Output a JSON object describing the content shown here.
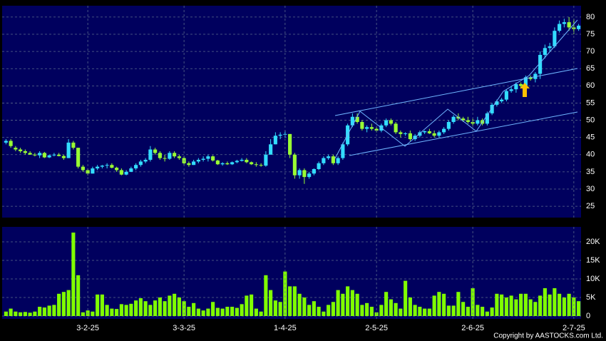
{
  "chart_data": [
    {
      "type": "candlestick",
      "up_color": "#33ddff",
      "down_color": "#99ff33",
      "ylim": [
        21.7,
        83.3
      ],
      "yticks": [
        25,
        30,
        35,
        40,
        45,
        50,
        55,
        60,
        65,
        70,
        75,
        80
      ],
      "grid": true,
      "open": [
        43.5,
        44,
        42,
        41.5,
        41,
        40.5,
        40,
        39.8,
        40.5,
        39.2,
        39.8,
        40,
        39.6,
        39,
        43.5,
        42,
        36.5,
        35.5,
        34.5,
        36,
        36.5,
        36.8,
        37,
        36.2,
        35.5,
        34.2,
        35,
        36,
        37,
        38,
        38.5,
        41.5,
        40.5,
        39,
        38.8,
        40.5,
        39.5,
        39,
        37.5,
        37,
        38,
        38.5,
        38.8,
        39.5,
        38.3,
        37.2,
        37.5,
        37.2,
        37.8,
        38.2,
        38.5,
        37.8,
        37.2,
        37,
        36.8,
        40,
        43,
        45.5,
        45.8,
        46,
        40,
        34,
        35.5,
        33.5,
        34.5,
        35.8,
        37.5,
        39,
        39.5,
        37.5,
        39,
        43,
        48.5,
        51,
        49.5,
        47.5,
        48,
        47.5,
        47,
        48.5,
        50,
        49,
        46.5,
        46,
        46.2,
        44.5,
        45.5,
        46.5,
        46.8,
        46.2,
        45.5,
        46.5,
        47.5,
        49.5,
        51,
        50.5,
        50,
        49.5,
        49,
        50,
        49,
        52,
        54.5,
        55.5,
        56,
        58.5,
        59,
        60.5,
        60,
        62.5,
        62,
        63.5,
        69,
        71,
        71.5,
        76,
        78,
        78.5,
        77,
        76.5
      ],
      "high": [
        44.5,
        44.5,
        42.5,
        42,
        41.5,
        41,
        40.5,
        41,
        40.8,
        40,
        40.5,
        40.5,
        40,
        44.5,
        44,
        42,
        37,
        36,
        36.5,
        37,
        37,
        37.5,
        37.5,
        36.5,
        36,
        35.5,
        36.5,
        37.5,
        38.5,
        39,
        42.5,
        42,
        41,
        40,
        41,
        41,
        40,
        39.5,
        38,
        38.5,
        39,
        39.5,
        40,
        39.8,
        38.5,
        37.8,
        38,
        38,
        38.5,
        39,
        39,
        38,
        37.8,
        37.5,
        41,
        44.5,
        46.5,
        46.5,
        47,
        46,
        40.5,
        36,
        36,
        35,
        36,
        38,
        39.5,
        40,
        40,
        39.5,
        43.5,
        49,
        52,
        52,
        50,
        48.5,
        49,
        48,
        49,
        50.5,
        50.5,
        49.5,
        47,
        46.5,
        47,
        46,
        47,
        47,
        47.5,
        47,
        47,
        48,
        50,
        51.5,
        52,
        51,
        51,
        50.5,
        51,
        50.5,
        52.5,
        55,
        56,
        56.5,
        59,
        60,
        61,
        61,
        63,
        63,
        64,
        70,
        72,
        72.5,
        77,
        79,
        79.5,
        80,
        79.5,
        78
      ],
      "low": [
        43,
        42,
        41,
        40.5,
        40,
        40,
        39.5,
        39,
        39,
        39,
        39.5,
        39.5,
        38.5,
        39,
        41.5,
        36,
        35,
        34,
        34.5,
        35.5,
        36,
        36,
        36,
        35,
        34,
        34,
        35,
        35.5,
        36.5,
        37.5,
        38,
        40,
        38.5,
        38,
        38.5,
        39,
        38.5,
        37,
        36.5,
        37,
        37.5,
        38,
        38,
        38,
        37,
        36.8,
        37,
        37,
        37.5,
        38,
        37.5,
        37,
        36.5,
        36.5,
        36.5,
        40,
        43,
        44.5,
        45,
        39,
        33,
        33,
        31.5,
        33,
        34,
        35.5,
        37,
        38.5,
        37,
        37,
        38.5,
        42.5,
        48,
        49,
        47,
        46.5,
        47,
        46.5,
        46.5,
        48,
        48.5,
        46,
        45,
        45.5,
        44,
        44,
        45,
        46,
        46,
        45,
        45,
        46,
        47,
        49,
        50,
        49.5,
        49,
        48.5,
        48.5,
        48.5,
        48.5,
        51.5,
        54,
        55,
        55.5,
        58,
        58,
        59.5,
        59.5,
        61.5,
        61,
        62,
        68,
        70,
        71,
        75.5,
        77,
        76,
        75,
        76
      ],
      "close": [
        44,
        42.5,
        41.5,
        41,
        40.5,
        40,
        39.8,
        40.5,
        39.2,
        39.8,
        40,
        39.6,
        39,
        43.5,
        42,
        36.5,
        35.5,
        34.5,
        36,
        36.5,
        36.8,
        37,
        36.2,
        35.5,
        34.2,
        35,
        36,
        37,
        38,
        38.5,
        41.5,
        40.5,
        39,
        38.8,
        40.5,
        39.5,
        39,
        37.5,
        37,
        38,
        38.5,
        38.8,
        39.5,
        38.3,
        37.2,
        37.5,
        37.2,
        37.8,
        38.2,
        38.5,
        37.8,
        37.2,
        37,
        36.8,
        40,
        43,
        45.5,
        45.8,
        46,
        40,
        34,
        35.5,
        33.5,
        34.5,
        35.8,
        37.5,
        39,
        39.5,
        37.5,
        39,
        43,
        48.5,
        51,
        49.5,
        47.5,
        48,
        47.5,
        47,
        48.5,
        50,
        49,
        46.5,
        46,
        46.2,
        44.5,
        45.5,
        46.5,
        46.8,
        46.2,
        45.5,
        46.5,
        47.5,
        49.5,
        51,
        50.5,
        50,
        49.5,
        49,
        50,
        49,
        52,
        54.5,
        55.5,
        56,
        58.5,
        59,
        60.5,
        60,
        62.5,
        62,
        63.5,
        69,
        71,
        71.5,
        76,
        78,
        78.5,
        77,
        76.5,
        77.5
      ]
    },
    {
      "type": "bar",
      "color": "#80ff00",
      "categories": [
        null,
        null,
        null,
        null,
        null,
        null,
        null,
        null,
        null,
        null,
        null,
        null,
        null,
        null,
        null,
        null,
        null,
        "3-2-25",
        null,
        null,
        null,
        null,
        null,
        null,
        null,
        null,
        null,
        null,
        null,
        null,
        null,
        null,
        null,
        null,
        null,
        null,
        null,
        "3-3-25",
        null,
        null,
        null,
        null,
        null,
        null,
        null,
        null,
        null,
        null,
        null,
        null,
        null,
        null,
        null,
        null,
        null,
        null,
        null,
        null,
        "1-4-25",
        null,
        null,
        null,
        null,
        null,
        null,
        null,
        null,
        null,
        null,
        null,
        null,
        null,
        null,
        null,
        null,
        null,
        null,
        "2-5-25",
        null,
        null,
        null,
        null,
        null,
        null,
        null,
        null,
        null,
        null,
        null,
        null,
        null,
        null,
        null,
        null,
        null,
        null,
        null,
        "2-6-25",
        null,
        null,
        null,
        null,
        null,
        null,
        null,
        null,
        null,
        null,
        null,
        null,
        null,
        null,
        null,
        null,
        null,
        null,
        null,
        null,
        "2-7-25",
        null
      ],
      "values": [
        1200,
        2000,
        1200,
        1000,
        1100,
        900,
        1200,
        2500,
        2300,
        2800,
        3000,
        6000,
        6500,
        7000,
        22500,
        11000,
        1000,
        1500,
        1200,
        5800,
        5800,
        3000,
        2000,
        1900,
        3200,
        3000,
        3300,
        4200,
        4800,
        4000,
        3000,
        4200,
        5000,
        4000,
        5500,
        6000,
        5000,
        4000,
        2500,
        3500,
        2000,
        1500,
        2000,
        3800,
        2200,
        2000,
        2500,
        2500,
        2200,
        3200,
        5500,
        5800,
        2000,
        1200,
        11000,
        7000,
        4200,
        3800,
        12000,
        8000,
        8000,
        6000,
        5000,
        3000,
        4000,
        2500,
        1200,
        3000,
        3800,
        7000,
        6000,
        8000,
        7000,
        6000,
        3000,
        3500,
        2500,
        1000,
        3000,
        6500,
        4500,
        3500,
        2000,
        9500,
        5000,
        3000,
        2500,
        2000,
        2000,
        5500,
        6500,
        6000,
        2800,
        2800,
        6500,
        3800,
        2500,
        7500,
        3000,
        2500,
        1200,
        2300,
        6000,
        5800,
        5000,
        5500,
        4500,
        6000,
        6000,
        4500,
        3800,
        5500,
        7500,
        5800,
        7500,
        6000,
        5000,
        6000,
        5000,
        4000
      ],
      "ylim": [
        -770,
        24040
      ],
      "yticks": [
        0,
        {
          "value": 5000,
          "label": "5K"
        },
        {
          "value": 10000,
          "label": "10K"
        },
        {
          "value": 15000,
          "label": "15K"
        },
        {
          "value": 20000,
          "label": "20K"
        }
      ],
      "grid": true
    }
  ],
  "footer": "Copyright by AASTOCKS.com Ltd."
}
